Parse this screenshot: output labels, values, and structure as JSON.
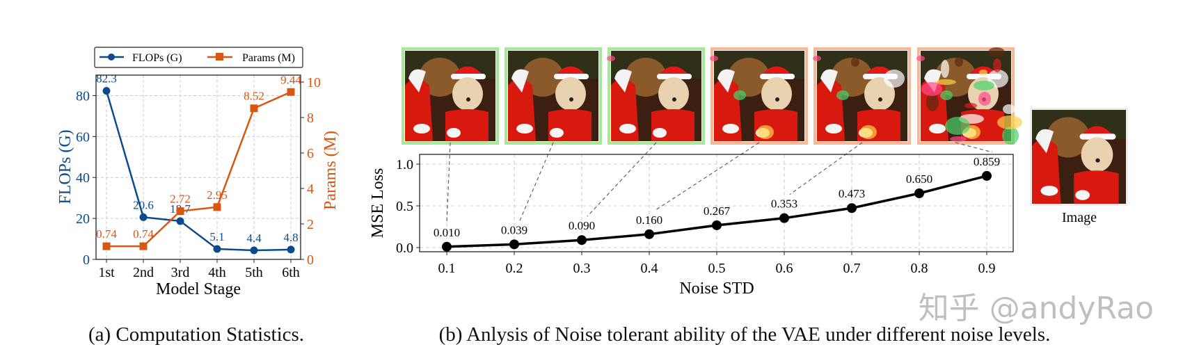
{
  "chart_data": [
    {
      "type": "line",
      "xlabel": "Model Stage",
      "ylabel": "FLOPs (G)",
      "y2label": "Params (M)",
      "categories": [
        "1st",
        "2nd",
        "3rd",
        "4th",
        "5th",
        "6th"
      ],
      "ylim": [
        0,
        90
      ],
      "y2lim": [
        0,
        10
      ],
      "yticks": [
        "0",
        "20",
        "40",
        "60",
        "80"
      ],
      "y2ticks": [
        "0",
        "2",
        "4",
        "6",
        "8",
        "10"
      ],
      "grid": true,
      "legend_position": "top",
      "series": [
        {
          "name": "FLOPs (G)",
          "axis": "left",
          "marker": "circle",
          "color": "#0b4a8b",
          "values": [
            82.3,
            20.6,
            18.7,
            5.1,
            4.4,
            4.8
          ],
          "labels": [
            "82.3",
            "20.6",
            "18.7",
            "5.1",
            "4.4",
            "4.8"
          ]
        },
        {
          "name": "Params (M)",
          "axis": "right",
          "marker": "square",
          "color": "#d9560f",
          "values": [
            0.74,
            0.74,
            2.72,
            2.95,
            8.52,
            9.44
          ],
          "labels": [
            "0.74",
            "0.74",
            "2.72",
            "2.95",
            "8.52",
            "9.44"
          ]
        }
      ],
      "caption": "(a) Computation Statistics."
    },
    {
      "type": "line",
      "xlabel": "Noise STD",
      "ylabel": "MSE Loss",
      "x": [
        0.1,
        0.2,
        0.3,
        0.4,
        0.5,
        0.6,
        0.7,
        0.8,
        0.9
      ],
      "xticks": [
        "0.1",
        "0.2",
        "0.3",
        "0.4",
        "0.5",
        "0.6",
        "0.7",
        "0.8",
        "0.9"
      ],
      "yticks": [
        "0.0",
        "0.5",
        "1.0"
      ],
      "xlim": [
        0.04,
        0.98
      ],
      "ylim": [
        -0.05,
        1.12
      ],
      "grid": true,
      "series": [
        {
          "color": "#000000",
          "marker": "circle",
          "values": [
            0.01,
            0.039,
            0.09,
            0.16,
            0.267,
            0.353,
            0.473,
            0.65,
            0.859
          ],
          "labels": [
            "0.010",
            "0.039",
            "0.090",
            "0.160",
            "0.267",
            "0.353",
            "0.473",
            "0.650",
            "0.859"
          ]
        }
      ],
      "thumbnails": [
        {
          "point_index": 0,
          "border": "#9be58a"
        },
        {
          "point_index": 1,
          "border": "#9be58a"
        },
        {
          "point_index": 2,
          "border": "#9be58a"
        },
        {
          "point_index": 3,
          "border": "#f7b08a"
        },
        {
          "point_index": 5,
          "border": "#f7b08a"
        },
        {
          "point_index": 8,
          "border": "#f7b08a"
        }
      ],
      "reference_image_label": "Image",
      "caption": "(b) Anlysis of Noise tolerant ability of the VAE under different noise levels."
    }
  ],
  "watermark": "知乎 @andyRao"
}
